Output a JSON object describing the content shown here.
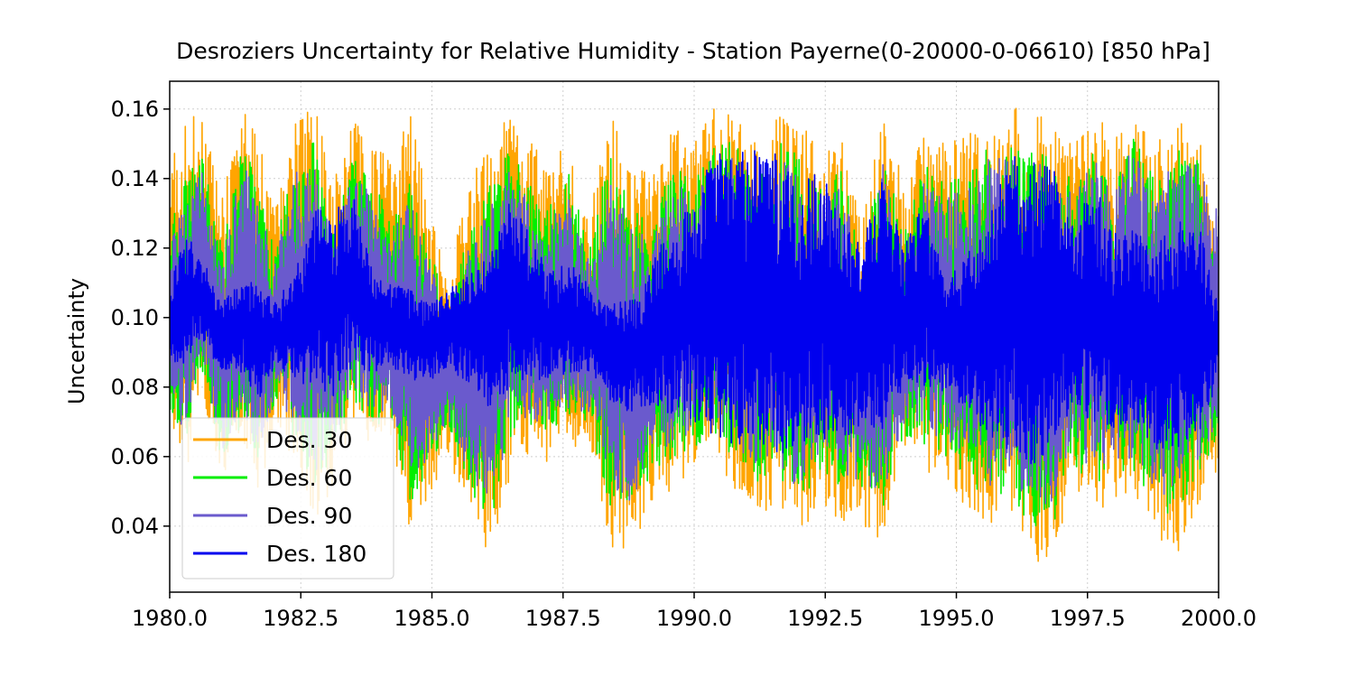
{
  "chart_data": {
    "type": "line",
    "title": "Desroziers Uncertainty for Relative Humidity  - Station Payerne(0-20000-0-06610) [850 hPa]",
    "xlabel": "",
    "ylabel": "Uncertainty",
    "xlim": [
      1980.0,
      2000.0
    ],
    "ylim": [
      0.021,
      0.168
    ],
    "x_ticks": [
      1980.0,
      1982.5,
      1985.0,
      1987.5,
      1990.0,
      1992.5,
      1995.0,
      1997.5,
      2000.0
    ],
    "x_tick_labels": [
      "1980.0",
      "1982.5",
      "1985.0",
      "1987.5",
      "1990.0",
      "1992.5",
      "1995.0",
      "1997.5",
      "2000.0"
    ],
    "y_ticks": [
      0.04,
      0.06,
      0.08,
      0.1,
      0.12,
      0.14,
      0.16
    ],
    "y_tick_labels": [
      "0.04",
      "0.06",
      "0.08",
      "0.10",
      "0.12",
      "0.14",
      "0.16"
    ],
    "grid": true,
    "legend_position": "lower-left",
    "envelope_x": [
      1980.0,
      1980.3,
      1980.6,
      1981.0,
      1981.4,
      1981.7,
      1982.0,
      1982.4,
      1982.8,
      1983.1,
      1983.5,
      1983.9,
      1984.2,
      1984.6,
      1985.0,
      1985.3,
      1985.7,
      1986.1,
      1986.5,
      1986.8,
      1987.2,
      1987.6,
      1988.0,
      1988.4,
      1988.8,
      1989.2,
      1989.6,
      1990.0,
      1990.4,
      1990.8,
      1991.2,
      1991.6,
      1992.0,
      1992.4,
      1992.8,
      1993.2,
      1993.6,
      1994.0,
      1994.4,
      1994.8,
      1995.2,
      1995.6,
      1996.0,
      1996.4,
      1996.8,
      1997.2,
      1997.6,
      1998.0,
      1998.4,
      1998.8,
      1999.2,
      1999.6,
      2000.0
    ],
    "series": [
      {
        "name": "Des. 30",
        "color": "#ffa500",
        "upper": [
          0.146,
          0.157,
          0.16,
          0.135,
          0.16,
          0.152,
          0.13,
          0.157,
          0.161,
          0.138,
          0.157,
          0.15,
          0.145,
          0.16,
          0.13,
          0.11,
          0.14,
          0.15,
          0.16,
          0.152,
          0.145,
          0.15,
          0.13,
          0.16,
          0.145,
          0.14,
          0.155,
          0.15,
          0.161,
          0.16,
          0.15,
          0.158,
          0.157,
          0.148,
          0.152,
          0.13,
          0.16,
          0.14,
          0.155,
          0.15,
          0.152,
          0.158,
          0.16,
          0.161,
          0.155,
          0.15,
          0.16,
          0.152,
          0.158,
          0.15,
          0.158,
          0.155,
          0.12
        ],
        "lower": [
          0.07,
          0.052,
          0.08,
          0.05,
          0.062,
          0.045,
          0.07,
          0.058,
          0.04,
          0.05,
          0.07,
          0.06,
          0.065,
          0.036,
          0.048,
          0.06,
          0.04,
          0.03,
          0.055,
          0.06,
          0.058,
          0.062,
          0.062,
          0.033,
          0.031,
          0.046,
          0.05,
          0.055,
          0.06,
          0.05,
          0.043,
          0.046,
          0.036,
          0.048,
          0.04,
          0.038,
          0.034,
          0.06,
          0.055,
          0.052,
          0.045,
          0.036,
          0.04,
          0.03,
          0.028,
          0.05,
          0.042,
          0.046,
          0.048,
          0.035,
          0.031,
          0.046,
          0.057
        ]
      },
      {
        "name": "Des. 60",
        "color": "#00ee00",
        "upper": [
          0.128,
          0.14,
          0.148,
          0.12,
          0.151,
          0.138,
          0.12,
          0.148,
          0.151,
          0.125,
          0.148,
          0.14,
          0.13,
          0.14,
          0.12,
          0.1,
          0.125,
          0.138,
          0.15,
          0.14,
          0.132,
          0.142,
          0.12,
          0.148,
          0.132,
          0.126,
          0.146,
          0.14,
          0.152,
          0.15,
          0.138,
          0.152,
          0.146,
          0.138,
          0.144,
          0.118,
          0.15,
          0.126,
          0.144,
          0.138,
          0.142,
          0.15,
          0.15,
          0.152,
          0.146,
          0.14,
          0.15,
          0.142,
          0.152,
          0.14,
          0.15,
          0.147,
          0.108
        ],
        "lower": [
          0.074,
          0.062,
          0.086,
          0.058,
          0.07,
          0.055,
          0.076,
          0.064,
          0.05,
          0.06,
          0.076,
          0.068,
          0.072,
          0.045,
          0.058,
          0.068,
          0.05,
          0.04,
          0.064,
          0.068,
          0.066,
          0.07,
          0.07,
          0.045,
          0.042,
          0.055,
          0.058,
          0.062,
          0.066,
          0.058,
          0.052,
          0.054,
          0.046,
          0.056,
          0.05,
          0.048,
          0.044,
          0.066,
          0.062,
          0.06,
          0.054,
          0.046,
          0.05,
          0.04,
          0.038,
          0.058,
          0.052,
          0.054,
          0.056,
          0.045,
          0.042,
          0.055,
          0.065
        ]
      },
      {
        "name": "Des. 90",
        "color": "#6a5acd",
        "upper": [
          0.122,
          0.134,
          0.143,
          0.116,
          0.146,
          0.132,
          0.116,
          0.142,
          0.146,
          0.12,
          0.142,
          0.134,
          0.124,
          0.134,
          0.116,
          0.097,
          0.12,
          0.132,
          0.144,
          0.134,
          0.126,
          0.136,
          0.116,
          0.142,
          0.126,
          0.122,
          0.14,
          0.135,
          0.148,
          0.146,
          0.133,
          0.148,
          0.141,
          0.134,
          0.14,
          0.114,
          0.146,
          0.122,
          0.14,
          0.134,
          0.138,
          0.146,
          0.146,
          0.148,
          0.142,
          0.136,
          0.146,
          0.138,
          0.15,
          0.136,
          0.146,
          0.144,
          0.13
        ],
        "lower": [
          0.078,
          0.066,
          0.088,
          0.062,
          0.074,
          0.06,
          0.078,
          0.068,
          0.055,
          0.064,
          0.079,
          0.071,
          0.075,
          0.05,
          0.062,
          0.071,
          0.055,
          0.045,
          0.068,
          0.071,
          0.069,
          0.073,
          0.073,
          0.05,
          0.047,
          0.059,
          0.062,
          0.066,
          0.069,
          0.062,
          0.056,
          0.058,
          0.05,
          0.06,
          0.054,
          0.052,
          0.049,
          0.069,
          0.066,
          0.064,
          0.058,
          0.05,
          0.054,
          0.046,
          0.044,
          0.062,
          0.056,
          0.058,
          0.06,
          0.049,
          0.047,
          0.059,
          0.068
        ]
      },
      {
        "name": "Des. 180",
        "color": "#0000ee",
        "upper": [
          0.11,
          0.124,
          0.118,
          0.104,
          0.112,
          0.11,
          0.104,
          0.114,
          0.132,
          0.13,
          0.136,
          0.112,
          0.11,
          0.108,
          0.104,
          0.108,
          0.112,
          0.118,
          0.134,
          0.126,
          0.114,
          0.116,
          0.11,
          0.104,
          0.106,
          0.118,
          0.126,
          0.134,
          0.148,
          0.148,
          0.148,
          0.148,
          0.136,
          0.146,
          0.128,
          0.122,
          0.14,
          0.12,
          0.134,
          0.11,
          0.118,
          0.128,
          0.148,
          0.144,
          0.148,
          0.126,
          0.14,
          0.124,
          0.126,
          0.122,
          0.128,
          0.128,
          0.104
        ],
        "lower": [
          0.088,
          0.086,
          0.094,
          0.082,
          0.084,
          0.076,
          0.086,
          0.082,
          0.078,
          0.076,
          0.086,
          0.084,
          0.086,
          0.082,
          0.082,
          0.086,
          0.08,
          0.074,
          0.08,
          0.082,
          0.082,
          0.084,
          0.084,
          0.076,
          0.072,
          0.074,
          0.072,
          0.07,
          0.066,
          0.062,
          0.06,
          0.06,
          0.064,
          0.064,
          0.066,
          0.066,
          0.068,
          0.08,
          0.08,
          0.078,
          0.074,
          0.066,
          0.062,
          0.056,
          0.062,
          0.074,
          0.07,
          0.068,
          0.07,
          0.062,
          0.062,
          0.066,
          0.082
        ]
      }
    ]
  }
}
